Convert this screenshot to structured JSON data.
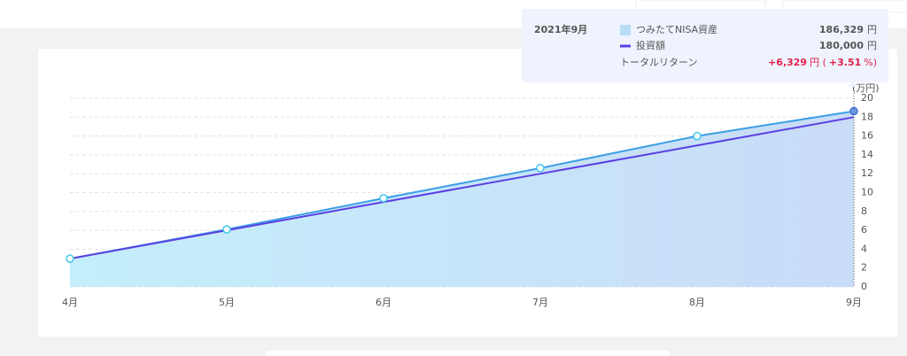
{
  "chart_data": {
    "type": "area-line",
    "ylabel": "(万円)",
    "categories": [
      "4月",
      "5月",
      "6月",
      "7月",
      "8月",
      "9月"
    ],
    "series": [
      {
        "name": "つみたてNISA資産",
        "color": "#3d9fe6",
        "fill": "#c6e6f8",
        "values": [
          3.0,
          6.1,
          9.4,
          12.6,
          16.0,
          18.6329
        ]
      },
      {
        "name": "投資額",
        "color": "#5b3fe3",
        "values": [
          3,
          6,
          9,
          12,
          15,
          18
        ]
      }
    ],
    "ylim": [
      0,
      20
    ],
    "yticks": [
      0,
      2,
      4,
      6,
      8,
      10,
      12,
      14,
      16,
      18,
      20
    ],
    "grid": true,
    "tooltip": {
      "title": "2021年9月",
      "values": [
        "186,329",
        "180,000"
      ],
      "unit": "円",
      "return_label": "トータルリターン",
      "return_value": "+6,329",
      "return_open": "円 (",
      "return_pct": "+3.51",
      "return_close": "%)"
    }
  }
}
